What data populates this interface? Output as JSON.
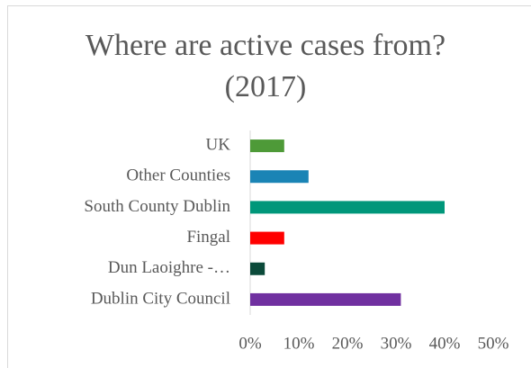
{
  "chart_data": {
    "type": "hbar",
    "title": "Where are active cases from? (2017)",
    "categories": [
      "UK",
      "Other Counties",
      "South County Dublin",
      "Fingal",
      "Dun Laoighre -…",
      "Dublin City Council"
    ],
    "values": [
      7,
      12,
      40,
      7,
      3,
      31
    ],
    "colors": [
      "#4e9a38",
      "#1a84b5",
      "#00977a",
      "#ff0000",
      "#0b4a3a",
      "#7030a0"
    ],
    "xlim": [
      0,
      50
    ],
    "xticks": [
      {
        "value": 0,
        "label": "0%"
      },
      {
        "value": 10,
        "label": "10%"
      },
      {
        "value": 20,
        "label": "20%"
      },
      {
        "value": 30,
        "label": "30%"
      },
      {
        "value": 40,
        "label": "40%"
      },
      {
        "value": 50,
        "label": "50%"
      }
    ],
    "grid": false
  }
}
